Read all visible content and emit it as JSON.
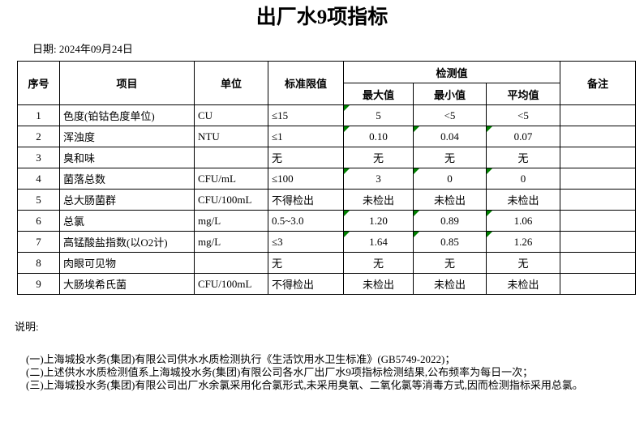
{
  "title": "出厂水9项指标",
  "date_label": "日期: 2024年09月24日",
  "table": {
    "headers": {
      "no": "序号",
      "item": "项目",
      "unit": "单位",
      "limit": "标准限值",
      "detection": "检测值",
      "max": "最大值",
      "min": "最小值",
      "avg": "平均值",
      "remark": "备注"
    },
    "rows": [
      {
        "no": "1",
        "item": "色度(铂钴色度单位)",
        "unit": "CU",
        "limit": "≤15",
        "max": "5",
        "min": "<5",
        "avg": "<5",
        "remark": "",
        "flags": {
          "max": true,
          "min": false,
          "avg": false
        }
      },
      {
        "no": "2",
        "item": "浑浊度",
        "unit": "NTU",
        "limit": "≤1",
        "max": "0.10",
        "min": "0.04",
        "avg": "0.07",
        "remark": "",
        "flags": {
          "max": true,
          "min": true,
          "avg": true
        }
      },
      {
        "no": "3",
        "item": "臭和味",
        "unit": "",
        "limit": "无",
        "max": "无",
        "min": "无",
        "avg": "无",
        "remark": "",
        "flags": {
          "max": false,
          "min": false,
          "avg": false
        }
      },
      {
        "no": "4",
        "item": "菌落总数",
        "unit": "CFU/mL",
        "limit": "≤100",
        "max": "3",
        "min": "0",
        "avg": "0",
        "remark": "",
        "flags": {
          "max": true,
          "min": true,
          "avg": true
        }
      },
      {
        "no": "5",
        "item": "总大肠菌群",
        "unit": "CFU/100mL",
        "limit": "不得检出",
        "max": "未检出",
        "min": "未检出",
        "avg": "未检出",
        "remark": "",
        "flags": {
          "max": false,
          "min": false,
          "avg": false
        }
      },
      {
        "no": "6",
        "item": "总氯",
        "unit": "mg/L",
        "limit": "0.5~3.0",
        "max": "1.20",
        "min": "0.89",
        "avg": "1.06",
        "remark": "",
        "flags": {
          "max": true,
          "min": true,
          "avg": true
        }
      },
      {
        "no": "7",
        "item": "高锰酸盐指数(以O2计)",
        "unit": "mg/L",
        "limit": "≤3",
        "max": "1.64",
        "min": "0.85",
        "avg": "1.26",
        "remark": "",
        "flags": {
          "max": true,
          "min": true,
          "avg": true
        }
      },
      {
        "no": "8",
        "item": "肉眼可见物",
        "unit": "",
        "limit": "无",
        "max": "无",
        "min": "无",
        "avg": "无",
        "remark": "",
        "flags": {
          "max": false,
          "min": false,
          "avg": false
        }
      },
      {
        "no": "9",
        "item": "大肠埃希氏菌",
        "unit": "CFU/100mL",
        "limit": "不得检出",
        "max": "未检出",
        "min": "未检出",
        "avg": "未检出",
        "remark": "",
        "flags": {
          "max": false,
          "min": false,
          "avg": false
        }
      }
    ]
  },
  "notes": {
    "label": "说明:",
    "items": [
      "(一)上海城投水务(集团)有限公司供水水质检测执行《生活饮用水卫生标准》(GB5749-2022)；",
      "(二)上述供水水质检测值系上海城投水务(集团)有限公司各水厂出厂水9项指标检测结果,公布频率为每日一次；",
      "(三)上海城投水务(集团)有限公司出厂水余氯采用化合氯形式,未采用臭氧、二氧化氯等消毒方式,因而检测指标采用总氯。"
    ]
  },
  "colors": {
    "background": "#ffffff",
    "text": "#000000",
    "border": "#000000",
    "flag_green": "#008000"
  }
}
